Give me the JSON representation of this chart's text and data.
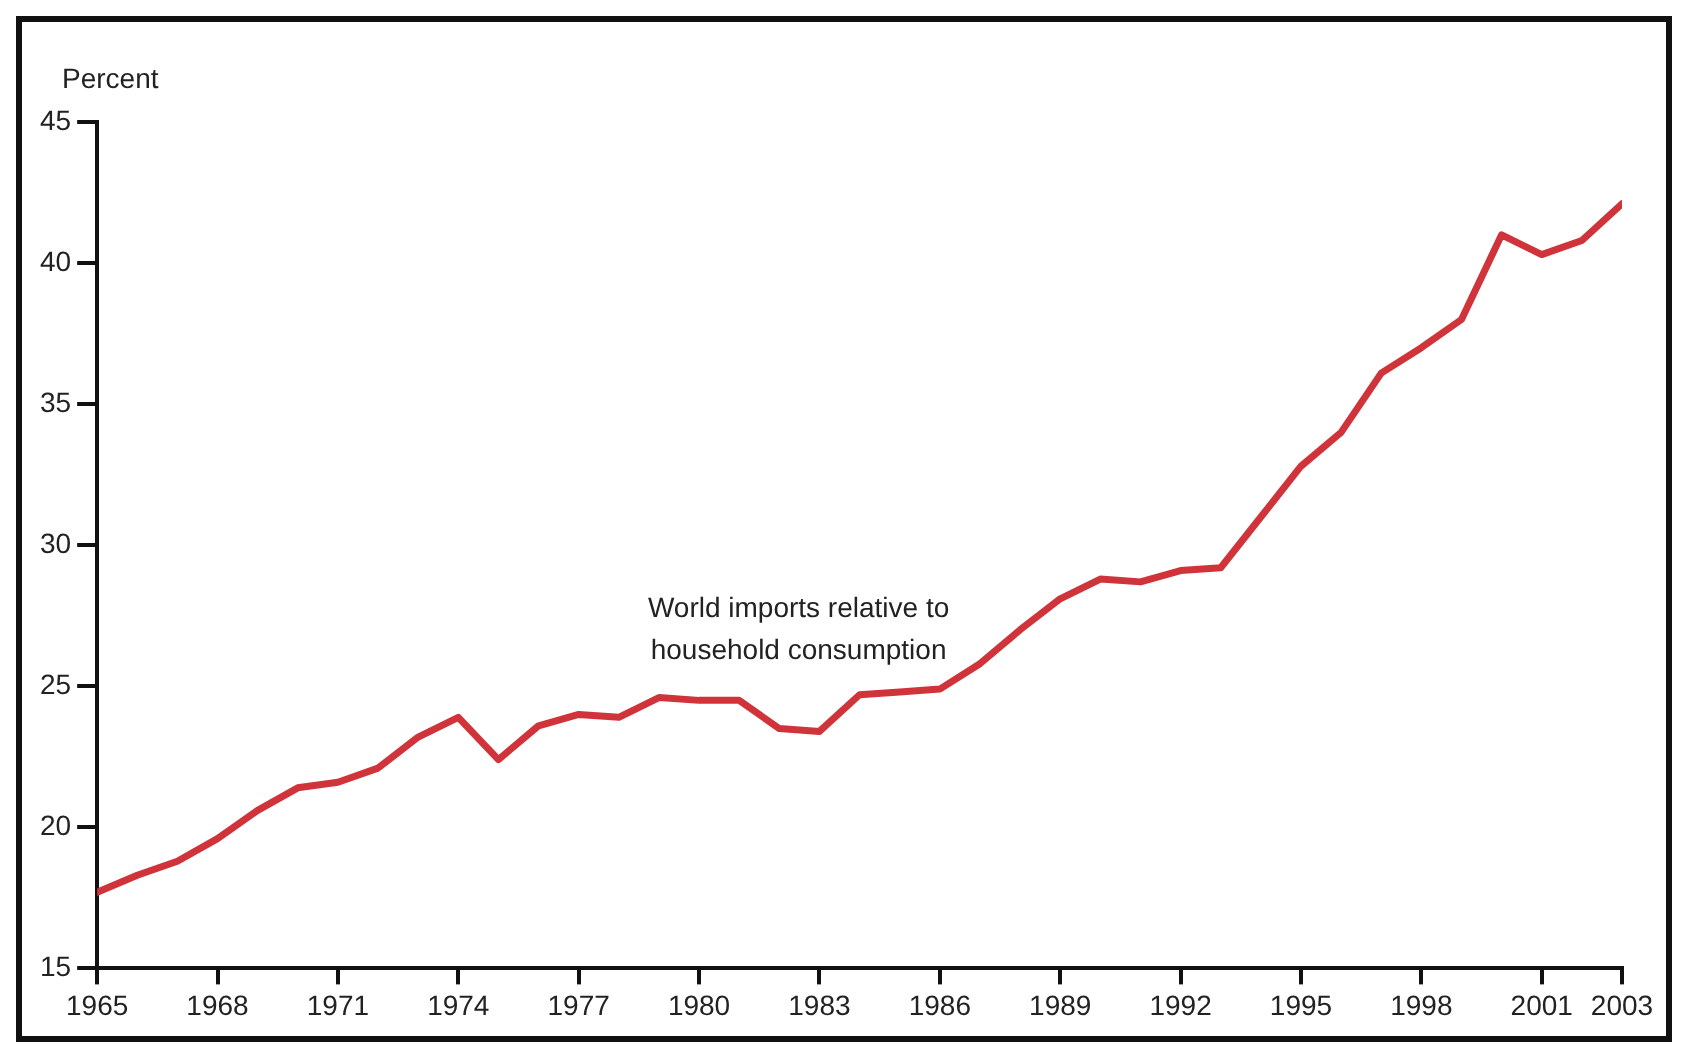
{
  "chart_data": {
    "type": "line",
    "ylabel": "Percent",
    "annotations": [
      "World imports relative to household consumption"
    ],
    "x": [
      1965,
      1966,
      1967,
      1968,
      1969,
      1970,
      1971,
      1972,
      1973,
      1974,
      1975,
      1976,
      1977,
      1978,
      1979,
      1980,
      1981,
      1982,
      1983,
      1984,
      1985,
      1986,
      1987,
      1988,
      1989,
      1990,
      1991,
      1992,
      1993,
      1994,
      1995,
      1996,
      1997,
      1998,
      1999,
      2000,
      2001,
      2002,
      2003
    ],
    "series": [
      {
        "color": "#d0343a",
        "values": [
          17.7,
          18.3,
          18.8,
          19.6,
          20.6,
          21.4,
          21.6,
          22.1,
          23.2,
          23.9,
          22.4,
          23.6,
          24.0,
          23.9,
          24.6,
          24.5,
          24.5,
          23.5,
          23.4,
          24.7,
          24.8,
          24.9,
          25.8,
          27.0,
          28.1,
          28.8,
          28.7,
          29.1,
          29.2,
          31.0,
          32.8,
          34.0,
          36.1,
          37.0,
          38.0,
          41.0,
          40.3,
          40.8,
          42.1
        ]
      }
    ],
    "xlim": [
      1965,
      2003
    ],
    "xticks": [
      1965,
      1968,
      1971,
      1974,
      1977,
      1980,
      1983,
      1986,
      1989,
      1992,
      1995,
      1998,
      2001,
      2003
    ],
    "ylim": [
      15,
      45
    ],
    "yticks": [
      15,
      20,
      25,
      30,
      35,
      40,
      45
    ],
    "grid": false,
    "legend": false,
    "marker": "none",
    "line_style": "solid"
  }
}
